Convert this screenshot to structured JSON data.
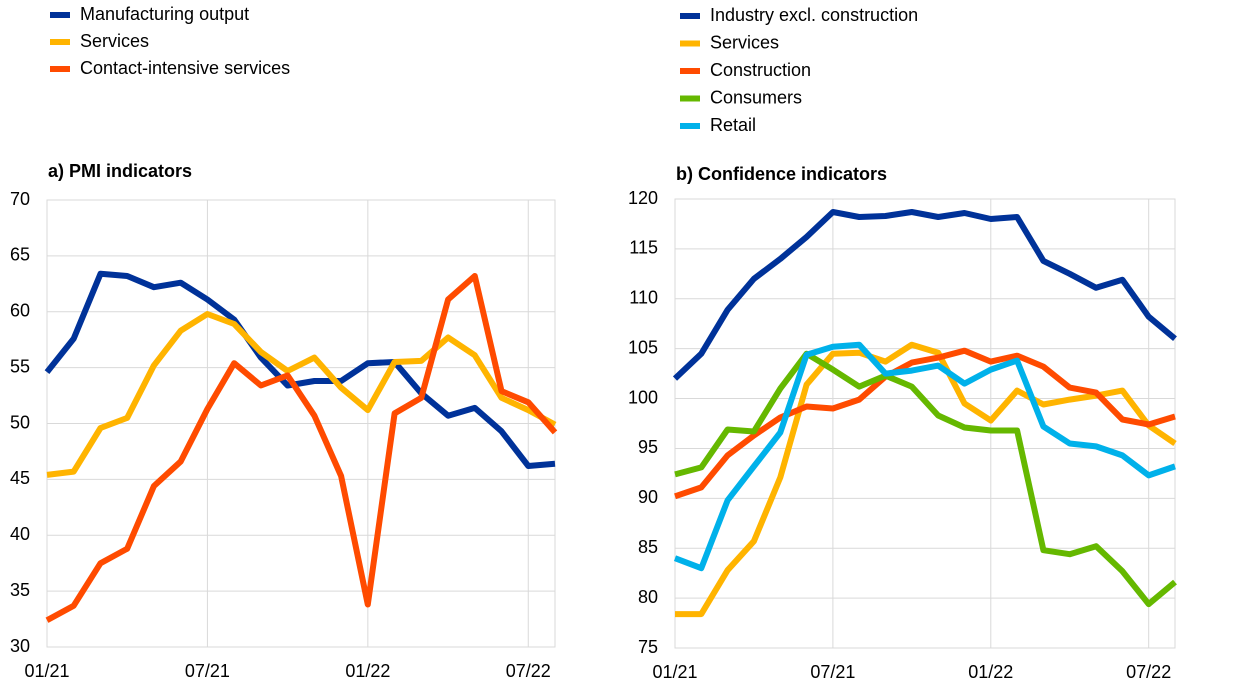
{
  "chart_data": [
    {
      "type": "line",
      "title": "a) PMI indicators",
      "categories": [
        "01/21",
        null,
        null,
        null,
        null,
        null,
        "07/21",
        null,
        null,
        null,
        null,
        null,
        "01/22",
        null,
        null,
        null,
        null,
        null,
        "07/22",
        null
      ],
      "ylim": [
        30,
        70
      ],
      "yticks": [
        30,
        35,
        40,
        45,
        50,
        55,
        60,
        65,
        70
      ],
      "grid": true,
      "series": [
        {
          "name": "Manufacturing output",
          "color": "#003299",
          "values": [
            54.6,
            57.6,
            63.4,
            63.2,
            62.2,
            62.6,
            61.1,
            59.3,
            55.9,
            53.4,
            53.8,
            53.8,
            55.4,
            55.5,
            52.7,
            50.7,
            51.4,
            49.3,
            46.2,
            46.4
          ]
        },
        {
          "name": "Services",
          "color": "#ffb400",
          "values": [
            45.4,
            45.7,
            49.6,
            50.5,
            55.2,
            58.3,
            59.8,
            58.9,
            56.4,
            54.7,
            55.9,
            53.2,
            51.2,
            55.5,
            55.6,
            57.7,
            56.1,
            52.3,
            51.2,
            49.9
          ]
        },
        {
          "name": "Contact-intensive services",
          "color": "#ff4b00",
          "values": [
            32.4,
            33.7,
            37.5,
            38.8,
            44.4,
            46.6,
            51.3,
            55.4,
            53.4,
            54.3,
            50.7,
            45.3,
            33.8,
            50.9,
            52.3,
            61.1,
            63.2,
            52.9,
            51.9,
            49.2
          ]
        }
      ]
    },
    {
      "type": "line",
      "title": "b) Confidence indicators",
      "categories": [
        "01/21",
        null,
        null,
        null,
        null,
        null,
        "07/21",
        null,
        null,
        null,
        null,
        null,
        "01/22",
        null,
        null,
        null,
        null,
        null,
        "07/22",
        null
      ],
      "ylim": [
        75,
        120
      ],
      "yticks": [
        75,
        80,
        85,
        90,
        95,
        100,
        105,
        110,
        115,
        120
      ],
      "grid": true,
      "series": [
        {
          "name": "Industry excl. construction",
          "color": "#003299",
          "values": [
            102.0,
            104.5,
            108.9,
            112.0,
            114.0,
            116.2,
            118.7,
            118.2,
            118.3,
            118.7,
            118.2,
            118.6,
            118.0,
            118.2,
            113.8,
            112.5,
            111.1,
            111.9,
            108.2,
            106.0
          ]
        },
        {
          "name": "Services",
          "color": "#ffb400",
          "values": [
            78.4,
            78.4,
            82.8,
            85.7,
            92.1,
            101.4,
            104.5,
            104.6,
            103.7,
            105.4,
            104.6,
            99.5,
            97.8,
            100.8,
            99.4,
            99.9,
            100.3,
            100.8,
            97.3,
            95.5
          ]
        },
        {
          "name": "Construction",
          "color": "#ff4b00",
          "values": [
            90.2,
            91.1,
            94.3,
            96.3,
            98.1,
            99.2,
            99.0,
            99.9,
            102.2,
            103.6,
            104.1,
            104.8,
            103.7,
            104.3,
            103.2,
            101.1,
            100.6,
            97.9,
            97.4,
            98.2
          ]
        },
        {
          "name": "Consumers",
          "color": "#65b800",
          "values": [
            92.4,
            93.1,
            96.9,
            96.7,
            101.0,
            104.5,
            102.9,
            101.2,
            102.3,
            101.2,
            98.3,
            97.1,
            96.8,
            96.8,
            84.8,
            84.4,
            85.2,
            82.7,
            79.4,
            81.6
          ]
        },
        {
          "name": "Retail",
          "color": "#00b1ea",
          "values": [
            84.0,
            83.0,
            89.8,
            93.2,
            96.6,
            104.4,
            105.2,
            105.4,
            102.5,
            102.8,
            103.3,
            101.5,
            102.9,
            103.8,
            97.2,
            95.5,
            95.2,
            94.3,
            92.3,
            93.2
          ]
        }
      ]
    }
  ]
}
